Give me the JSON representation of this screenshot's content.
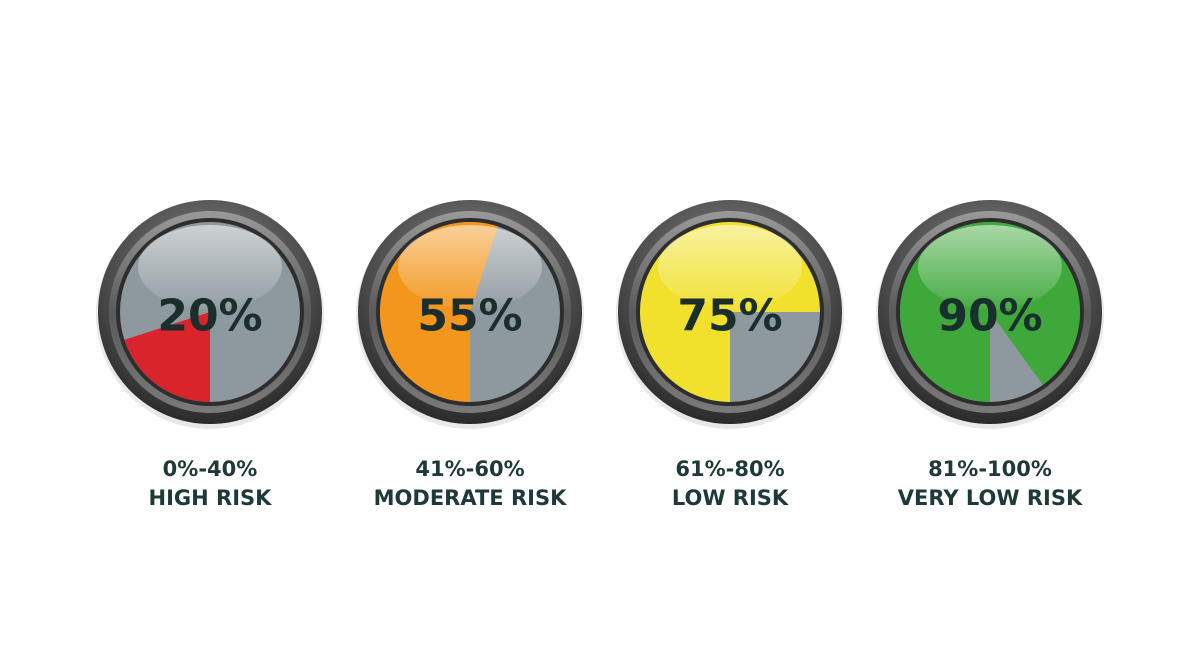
{
  "gauges": [
    {
      "value": 20,
      "value_label": "20%",
      "range": "0%-40%",
      "risk": "HIGH RISK",
      "color": "#d8242a"
    },
    {
      "value": 55,
      "value_label": "55%",
      "range": "41%-60%",
      "risk": "MODERATE RISK",
      "color": "#f2961c"
    },
    {
      "value": 75,
      "value_label": "75%",
      "range": "61%-80%",
      "risk": "LOW RISK",
      "color": "#f1e12c"
    },
    {
      "value": 90,
      "value_label": "90%",
      "range": "81%-100%",
      "risk": "VERY LOW RISK",
      "color": "#3ea83a"
    }
  ]
}
